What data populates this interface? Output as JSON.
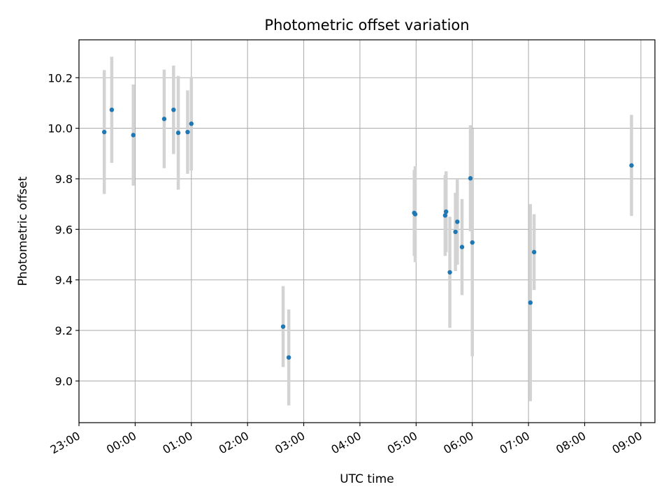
{
  "chart_data": {
    "type": "scatter",
    "title": "Photometric offset variation",
    "xlabel": "UTC time",
    "ylabel": "Photometric offset",
    "x_is_time": true,
    "xlim": [
      "23:00",
      "09:15"
    ],
    "ylim": [
      8.835,
      10.35
    ],
    "grid": true,
    "x_ticks": [
      "23:00",
      "00:00",
      "01:00",
      "02:00",
      "03:00",
      "04:00",
      "05:00",
      "06:00",
      "07:00",
      "08:00",
      "09:00"
    ],
    "y_ticks": [
      9.0,
      9.2,
      9.4,
      9.6,
      9.8,
      10.0,
      10.2
    ],
    "y_tick_labels": [
      "9.0",
      "9.2",
      "9.4",
      "9.6",
      "9.8",
      "10.0",
      "10.2"
    ],
    "marker_color": "#1f77b4",
    "errorbar_color": "#d3d3d3",
    "points": [
      {
        "x": "23:27",
        "y": 9.985,
        "err": 0.245
      },
      {
        "x": "23:35",
        "y": 10.073,
        "err": 0.21
      },
      {
        "x": "23:58",
        "y": 9.973,
        "err": 0.2
      },
      {
        "x": "00:31",
        "y": 10.037,
        "err": 0.195
      },
      {
        "x": "00:41",
        "y": 10.073,
        "err": 0.175
      },
      {
        "x": "00:46",
        "y": 9.982,
        "err": 0.225
      },
      {
        "x": "00:56",
        "y": 9.985,
        "err": 0.165
      },
      {
        "x": "01:00",
        "y": 10.018,
        "err": 0.185
      },
      {
        "x": "02:38",
        "y": 9.215,
        "err": 0.16
      },
      {
        "x": "02:44",
        "y": 9.093,
        "err": 0.19
      },
      {
        "x": "04:58",
        "y": 9.665,
        "err": 0.17
      },
      {
        "x": "04:59",
        "y": 9.66,
        "err": 0.19
      },
      {
        "x": "05:31",
        "y": 9.655,
        "err": 0.16
      },
      {
        "x": "05:32",
        "y": 9.67,
        "err": 0.16
      },
      {
        "x": "05:36",
        "y": 9.43,
        "err": 0.22
      },
      {
        "x": "05:42",
        "y": 9.59,
        "err": 0.155
      },
      {
        "x": "05:44",
        "y": 9.63,
        "err": 0.17
      },
      {
        "x": "05:49",
        "y": 9.53,
        "err": 0.19
      },
      {
        "x": "05:58",
        "y": 9.802,
        "err": 0.21
      },
      {
        "x": "06:00",
        "y": 9.548,
        "err": 0.45
      },
      {
        "x": "07:02",
        "y": 9.31,
        "err": 0.39
      },
      {
        "x": "07:06",
        "y": 9.51,
        "err": 0.15
      },
      {
        "x": "08:50",
        "y": 9.853,
        "err": 0.2
      }
    ]
  }
}
